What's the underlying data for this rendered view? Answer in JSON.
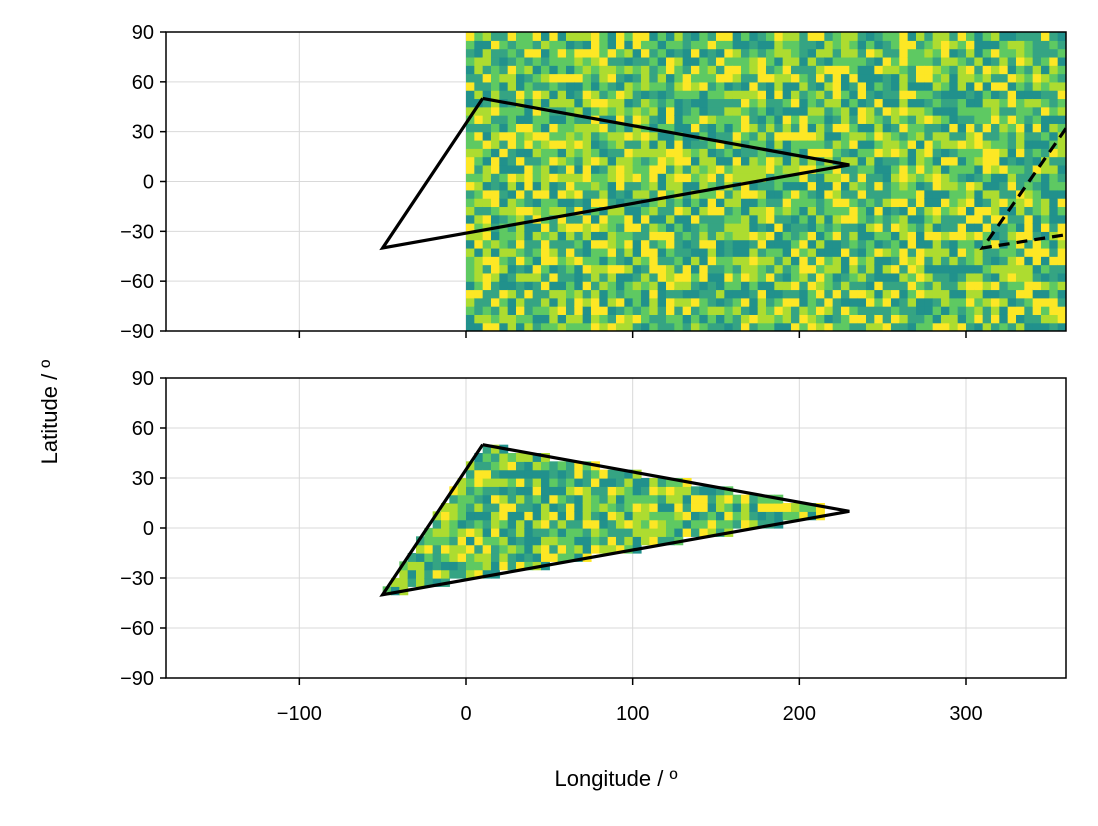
{
  "chart_data": [
    {
      "type": "heatmap",
      "panel": "top",
      "xlabel": "",
      "ylabel": "",
      "xlim": [
        -180,
        360
      ],
      "ylim": [
        -90,
        90
      ],
      "yticks": [
        90,
        60,
        30,
        0,
        -30,
        -60,
        -90
      ],
      "ytick_labels": [
        "90",
        "60",
        "30",
        "0",
        "−30",
        "−60",
        "−90"
      ],
      "xticks": [
        -100,
        0,
        100,
        200,
        300
      ],
      "xtick_labels_shown": false,
      "grid": true,
      "heatmap": {
        "lon_range": [
          0,
          360
        ],
        "lat_range": [
          -90,
          90
        ],
        "cell_size_deg": 5,
        "values": "random noise",
        "colormap": [
          "#21918c",
          "#35a483",
          "#5ec962",
          "#addc30",
          "#fde725"
        ]
      },
      "polygon_solid": [
        [
          10,
          50
        ],
        [
          230,
          10
        ],
        [
          -50,
          -40
        ],
        [
          10,
          50
        ]
      ],
      "polygon_dashed": [
        [
          360,
          32
        ],
        [
          310,
          -40
        ],
        [
          360,
          -32
        ]
      ]
    },
    {
      "type": "heatmap",
      "panel": "bottom",
      "xlabel": "Longitude / º",
      "ylabel": "Latitude / º",
      "xlim": [
        -180,
        360
      ],
      "ylim": [
        -90,
        90
      ],
      "yticks": [
        90,
        60,
        30,
        0,
        -30,
        -60,
        -90
      ],
      "ytick_labels": [
        "90",
        "60",
        "30",
        "0",
        "−30",
        "−60",
        "−90"
      ],
      "xticks": [
        -100,
        0,
        100,
        200,
        300
      ],
      "xtick_labels": [
        "−100",
        "0",
        "100",
        "200",
        "300"
      ],
      "grid": true,
      "heatmap": {
        "clipped_to": "polygon_solid",
        "cell_size_deg": 5,
        "values": "random noise",
        "colormap": [
          "#21918c",
          "#35a483",
          "#5ec962",
          "#addc30",
          "#fde725"
        ]
      },
      "polygon_solid": [
        [
          10,
          50
        ],
        [
          230,
          10
        ],
        [
          -50,
          -40
        ],
        [
          10,
          50
        ]
      ]
    }
  ],
  "labels": {
    "xlabel": "Longitude / º",
    "ylabel": "Latitude / º"
  }
}
